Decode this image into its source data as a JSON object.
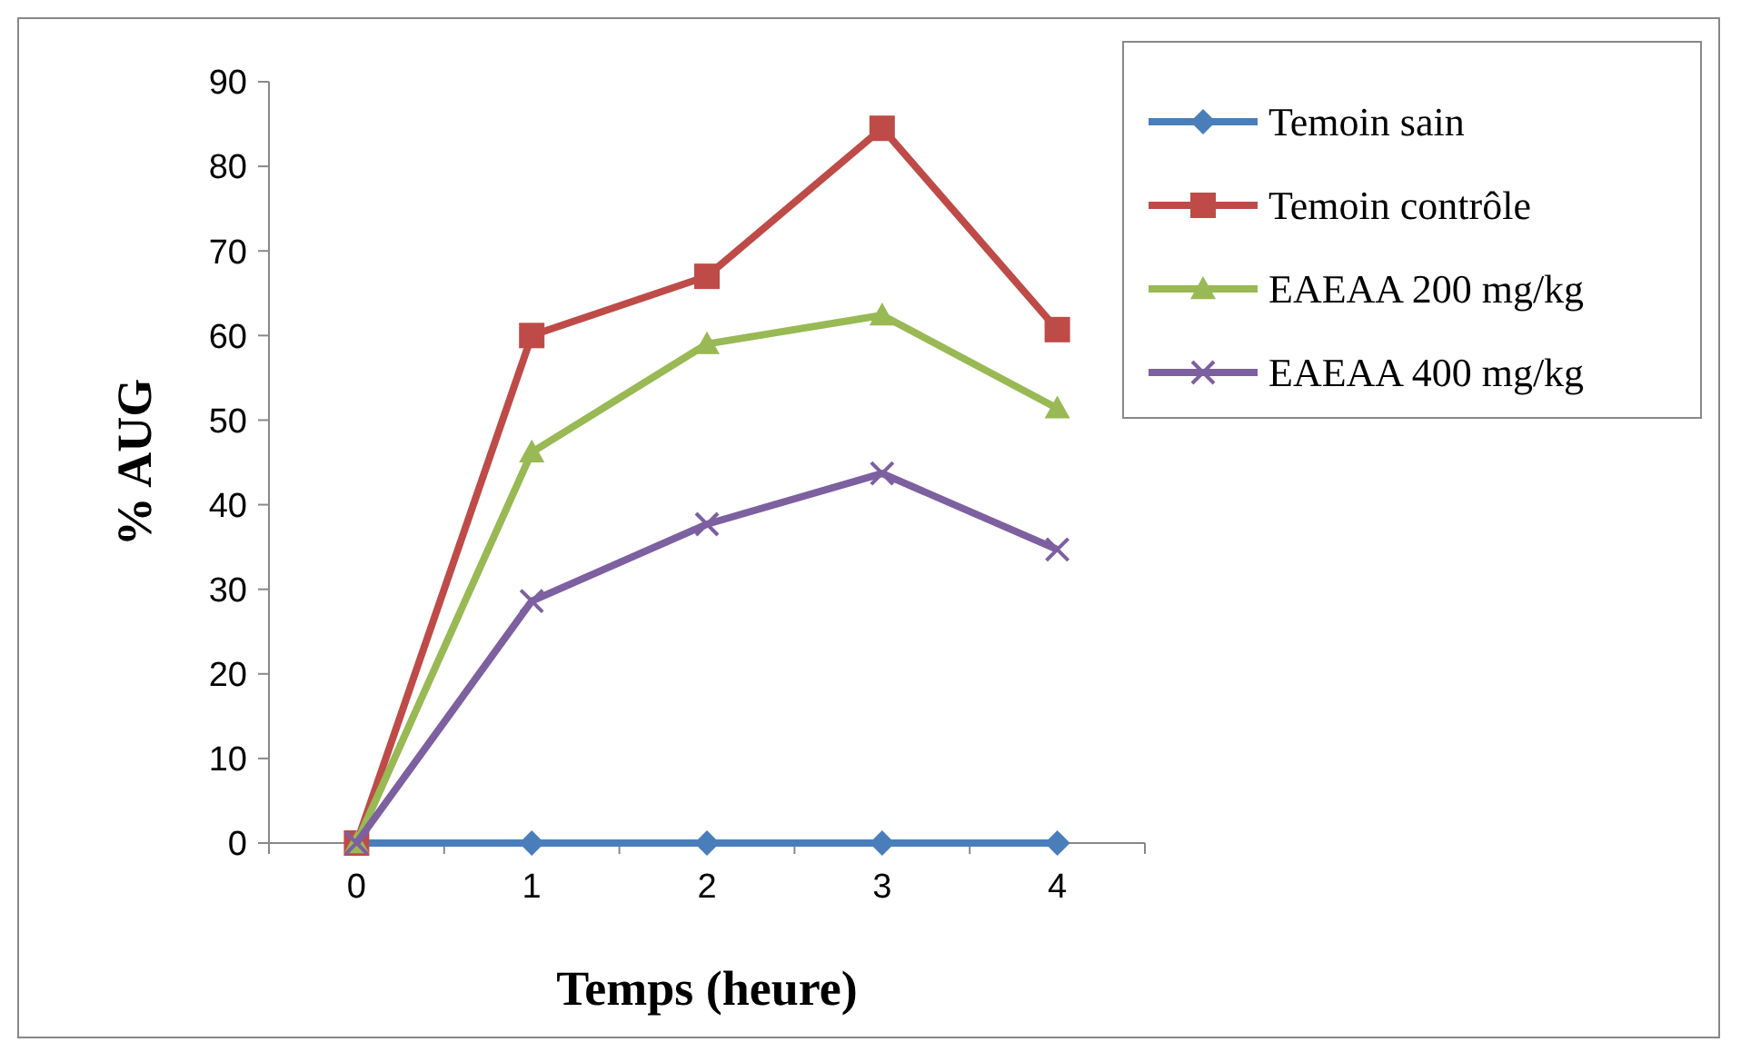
{
  "chart_data": {
    "type": "line",
    "xlabel": "Temps (heure)",
    "ylabel": "% AUG",
    "categories": [
      "0",
      "1",
      "2",
      "3",
      "4"
    ],
    "ylim": [
      0,
      90
    ],
    "yticks": [
      0,
      10,
      20,
      30,
      40,
      50,
      60,
      70,
      80,
      90
    ],
    "grid": false,
    "legend": "right",
    "series": [
      {
        "name": "Temoin sain",
        "color": "#4a7ebb",
        "marker": "diamond",
        "values": [
          0,
          0,
          0,
          0,
          0
        ]
      },
      {
        "name": "Temoin contrôle",
        "color": "#be4b48",
        "marker": "square",
        "values": [
          0,
          60,
          67,
          84.5,
          60.7
        ]
      },
      {
        "name": "EAEAA 200 mg/kg",
        "color": "#98b954",
        "marker": "triangle",
        "values": [
          0,
          46.2,
          59,
          62.4,
          51.4
        ]
      },
      {
        "name": "EAEAA 400 mg/kg",
        "color": "#7d60a0",
        "marker": "cross",
        "values": [
          0,
          28.6,
          37.7,
          43.7,
          34.7
        ]
      }
    ]
  }
}
